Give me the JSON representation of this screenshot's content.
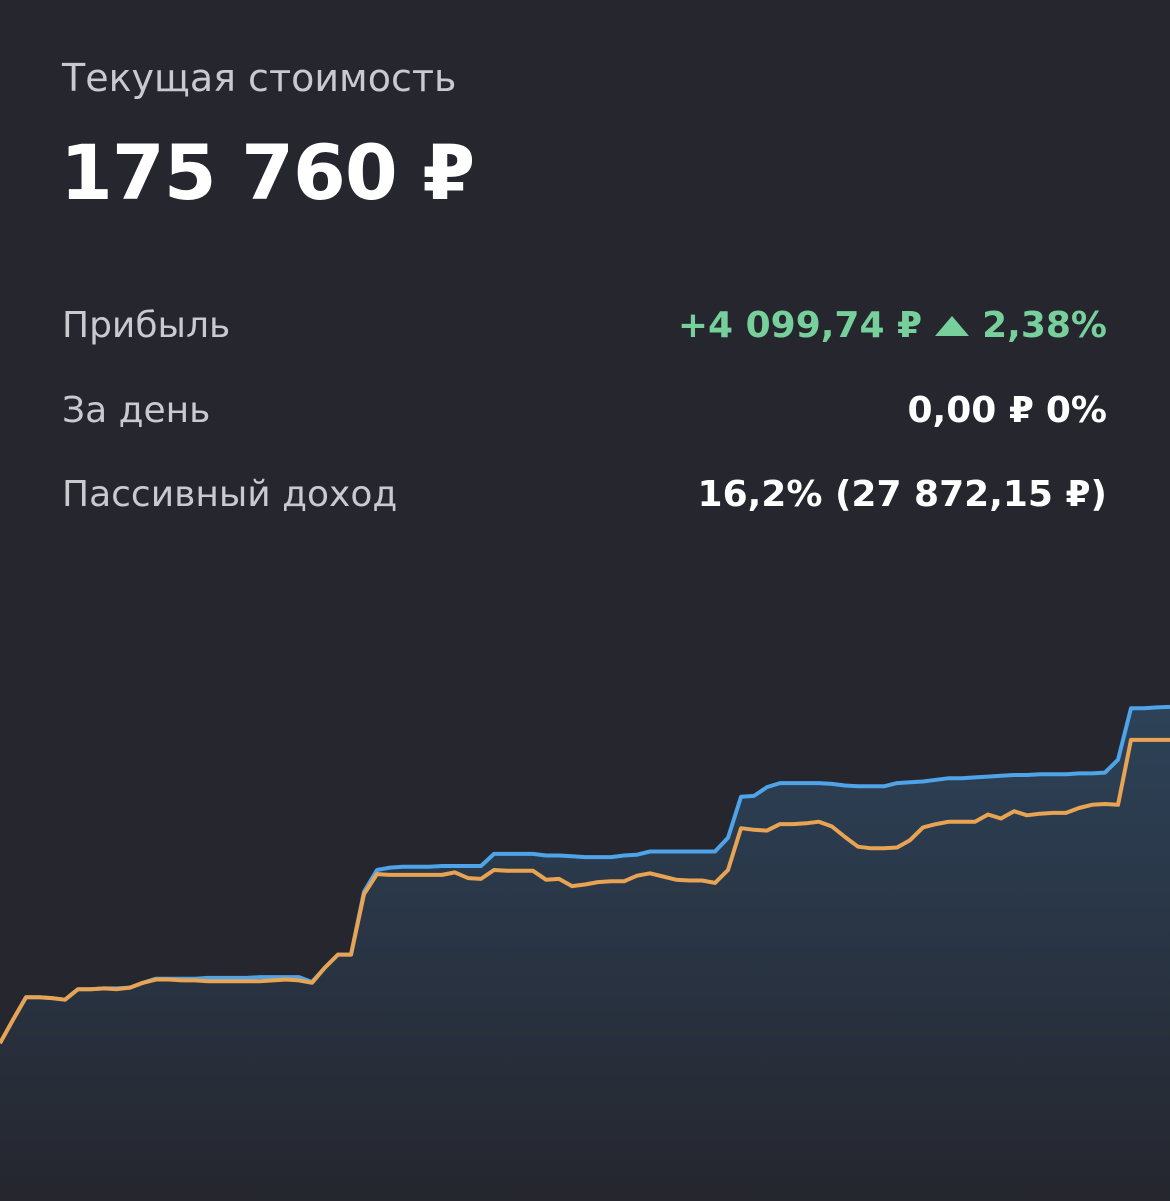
{
  "header": {
    "title": "Текущая стоимость",
    "value": "175 760 ₽"
  },
  "stats": [
    {
      "label": "Прибыль",
      "value": "+4 099,74 ₽",
      "change": "2,38%"
    },
    {
      "label": "За день",
      "value": "0,00 ₽",
      "change": "0%"
    },
    {
      "label": "Пассивный доход",
      "value": "16,2% (27 872,15 ₽)"
    }
  ],
  "chart_data": {
    "type": "line",
    "area": true,
    "x": [
      0,
      1,
      2,
      3,
      4,
      5,
      6,
      7,
      8,
      9,
      10,
      11,
      12,
      13,
      14,
      15,
      16,
      17,
      18,
      19,
      20,
      21,
      22,
      23,
      24,
      25,
      26,
      27,
      28,
      29,
      30,
      31,
      32,
      33,
      34,
      35,
      36,
      37,
      38,
      39,
      40,
      41,
      42,
      43,
      44,
      45,
      46,
      47,
      48,
      49,
      50,
      51,
      52,
      53,
      54,
      55,
      56,
      57,
      58,
      59,
      60,
      61,
      62,
      63,
      64,
      65,
      66,
      67,
      68,
      69,
      70,
      71,
      72,
      73,
      74,
      75,
      76,
      77,
      78,
      79,
      80,
      81,
      82,
      83,
      84,
      85,
      86,
      87,
      88,
      89,
      90
    ],
    "xlim": [
      0,
      90
    ],
    "ylim": [
      114400,
      194000
    ],
    "series": [
      {
        "color": "#4fa3e8",
        "values": [
          134000,
          136900,
          139700,
          139700,
          139600,
          139400,
          140700,
          140700,
          140800,
          140800,
          140900,
          141500,
          142000,
          142000,
          142000,
          142000,
          142100,
          142100,
          142100,
          142100,
          142200,
          142200,
          142200,
          142200,
          141600,
          143400,
          145000,
          145000,
          152800,
          155500,
          155800,
          155900,
          155900,
          155900,
          156000,
          156000,
          156000,
          156000,
          157500,
          157500,
          157500,
          157500,
          157300,
          157300,
          157200,
          157100,
          157100,
          157100,
          157300,
          157400,
          157800,
          157800,
          157800,
          157800,
          157800,
          157800,
          159500,
          164600,
          164700,
          165800,
          166300,
          166300,
          166300,
          166300,
          166200,
          166000,
          165900,
          165900,
          165900,
          166300,
          166400,
          166500,
          166700,
          166900,
          166900,
          167000,
          167100,
          167200,
          167300,
          167300,
          167400,
          167400,
          167400,
          167500,
          167500,
          167600,
          169200,
          175600,
          175600,
          175700,
          175760
        ]
      },
      {
        "color": "#e8a452",
        "values": [
          134000,
          136900,
          139700,
          139700,
          139600,
          139400,
          140700,
          140700,
          140800,
          140700,
          140900,
          141500,
          141900,
          141900,
          141800,
          141800,
          141700,
          141700,
          141700,
          141700,
          141700,
          141800,
          141900,
          141800,
          141500,
          143400,
          145000,
          145000,
          152500,
          155000,
          154900,
          154900,
          154900,
          154900,
          154900,
          155200,
          154500,
          154400,
          155500,
          155400,
          155400,
          155400,
          154300,
          154400,
          153500,
          153700,
          154000,
          154100,
          154100,
          154800,
          155100,
          154700,
          154300,
          154200,
          154200,
          153900,
          155500,
          160700,
          160500,
          160400,
          161200,
          161200,
          161300,
          161500,
          160900,
          159600,
          158400,
          158200,
          158200,
          158300,
          159200,
          160800,
          161200,
          161500,
          161500,
          161500,
          162400,
          161900,
          162800,
          162300,
          162500,
          162600,
          162600,
          163200,
          163600,
          163700,
          163600,
          171660,
          171660,
          171660,
          171660
        ]
      }
    ]
  }
}
